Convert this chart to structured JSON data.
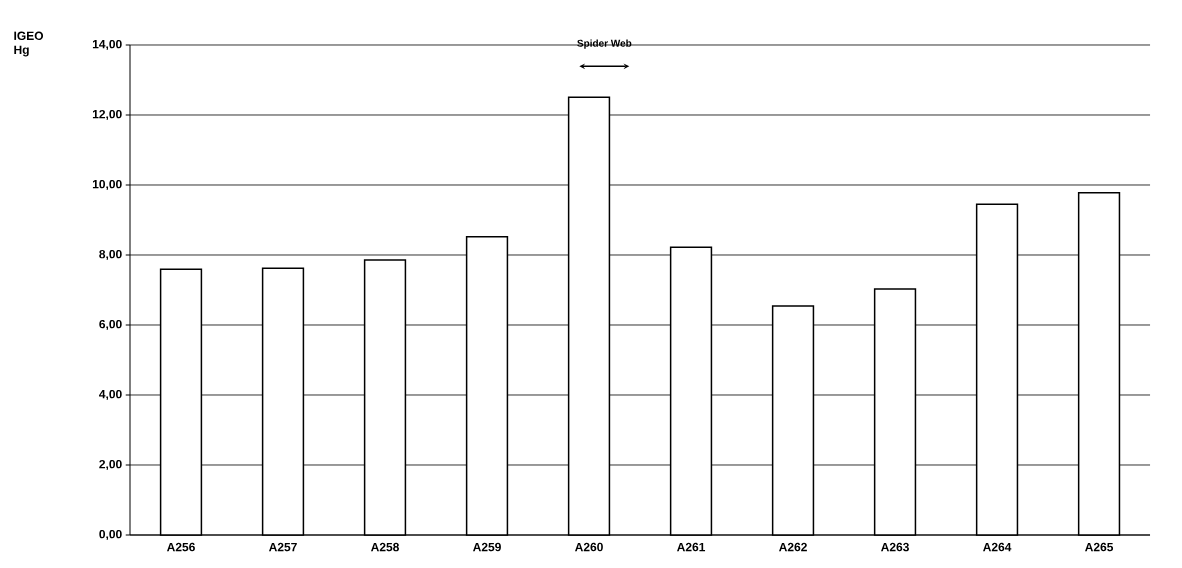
{
  "chart_data": {
    "type": "bar",
    "ylabel": "IGEO Hg",
    "categories": [
      "A256",
      "A257",
      "A258",
      "A259",
      "A260",
      "A261",
      "A262",
      "A263",
      "A264",
      "A265"
    ],
    "values": [
      7.59,
      7.62,
      7.86,
      8.52,
      12.51,
      8.22,
      6.54,
      7.03,
      9.45,
      9.78
    ],
    "color": "#ffffff",
    "ylim": [
      0,
      14
    ],
    "yticks": [
      {
        "value": 0,
        "label": "0,00"
      },
      {
        "value": 2,
        "label": "2,00"
      },
      {
        "value": 4,
        "label": "4,00"
      },
      {
        "value": 6,
        "label": "6,00"
      },
      {
        "value": 8,
        "label": "8,00"
      },
      {
        "value": 10,
        "label": "10,00"
      },
      {
        "value": 12,
        "label": "12,00"
      },
      {
        "value": 14,
        "label": "14,00"
      }
    ],
    "grid": "y",
    "annotations": [
      "Spider Web"
    ]
  }
}
